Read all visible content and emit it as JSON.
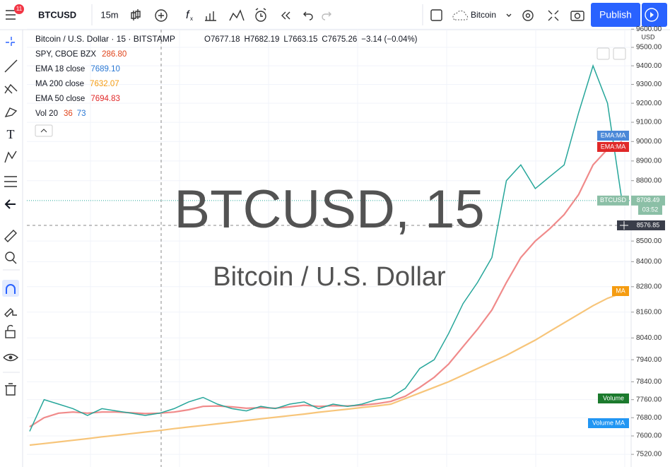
{
  "toolbar": {
    "symbol": "BTCUSD",
    "interval": "15m",
    "badge": "11",
    "layout_name": "Bitcoin",
    "publish": "Publish"
  },
  "legend": {
    "title": "Bitcoin / U.S. Dollar · 15 · BITSTAMP",
    "ohlc": [
      "O7677.18",
      "H7682.19",
      "L7663.15",
      "C7675.26",
      "−3.14 (−0.04%)"
    ],
    "studies": [
      {
        "name": "SPY, CBOE BZX",
        "value": "286.80",
        "color": "#e0441b"
      },
      {
        "name": "EMA 18 close",
        "value": "7689.10",
        "color": "#2a78d4"
      },
      {
        "name": "MA 200 close",
        "value": "7632.07",
        "color": "#f59c11"
      },
      {
        "name": "EMA 50 close",
        "value": "7694.83",
        "color": "#e02828"
      }
    ],
    "volume": {
      "name": "Vol 20",
      "value1": "36",
      "value2": "73"
    }
  },
  "watermark": {
    "title": "BTCUSD, 15",
    "subtitle": "Bitcoin / U.S. Dollar"
  },
  "axis_labels": {
    "unit": "USD",
    "ema_blue": "EMA:MA",
    "ema_red": "EMA:MA",
    "symbol": "BTCUSD",
    "last_price": "8708.49",
    "countdown": "03:52",
    "crosshair": "8576.85",
    "ma": "MA",
    "volume": "Volume",
    "volume_ma": "Volume MA"
  },
  "chart_data": {
    "type": "line",
    "log_scale": true,
    "ylim": [
      7499,
      9597
    ],
    "yticks": [
      {
        "value": 9600,
        "label": "9600.00"
      },
      {
        "value": 9500,
        "label": "9500.00"
      },
      {
        "value": 9400,
        "label": "9400.00"
      },
      {
        "value": 9300,
        "label": "9300.00"
      },
      {
        "value": 9200,
        "label": "9200.00"
      },
      {
        "value": 9100,
        "label": "9100.00"
      },
      {
        "value": 9000,
        "label": "9000.00"
      },
      {
        "value": 8900,
        "label": "8900.00"
      },
      {
        "value": 8800,
        "label": "8800.00"
      },
      {
        "value": 8500,
        "label": "8500.00"
      },
      {
        "value": 8400,
        "label": "8400.00"
      },
      {
        "value": 8280,
        "label": "8280.00"
      },
      {
        "value": 8160,
        "label": "8160.00"
      },
      {
        "value": 8040,
        "label": "8040.00"
      },
      {
        "value": 7940,
        "label": "7940.00"
      },
      {
        "value": 7840,
        "label": "7840.00"
      },
      {
        "value": 7760,
        "label": "7760.00"
      },
      {
        "value": 7680,
        "label": "7680.00"
      },
      {
        "value": 7600,
        "label": "7600.00"
      },
      {
        "value": 7520,
        "label": "7520.00"
      }
    ],
    "grid": true,
    "series": [
      {
        "name": "MA 200 close",
        "color": "#f7c57a",
        "values": [
          7560,
          7567,
          7574,
          7581,
          7588,
          7596,
          7603,
          7610,
          7617,
          7624,
          7632,
          7639,
          7646,
          7653,
          7660,
          7668,
          7675,
          7682,
          7689,
          7696,
          7704,
          7711,
          7718,
          7725,
          7732,
          7740,
          7765,
          7790,
          7815,
          7840,
          7870,
          7900,
          7930,
          7960,
          7995,
          8030,
          8070,
          8110,
          8150,
          8190,
          8225,
          8250
        ]
      },
      {
        "name": "EMA 50 close",
        "color": "#f08a8a",
        "values": [
          7640,
          7680,
          7700,
          7705,
          7700,
          7705,
          7705,
          7702,
          7698,
          7700,
          7705,
          7715,
          7730,
          7732,
          7728,
          7722,
          7724,
          7722,
          7728,
          7735,
          7730,
          7733,
          7732,
          7735,
          7742,
          7752,
          7775,
          7815,
          7860,
          7920,
          8000,
          8080,
          8170,
          8300,
          8420,
          8500,
          8560,
          8630,
          8730,
          8880,
          8960,
          9000
        ]
      },
      {
        "name": "BTCUSD",
        "color": "#26a69a",
        "values": [
          7620,
          7760,
          7740,
          7720,
          7690,
          7720,
          7710,
          7700,
          7690,
          7700,
          7720,
          7750,
          7770,
          7740,
          7720,
          7710,
          7730,
          7720,
          7740,
          7750,
          7720,
          7740,
          7730,
          7740,
          7760,
          7770,
          7810,
          7900,
          7940,
          8060,
          8200,
          8300,
          8420,
          8800,
          8880,
          8760,
          8820,
          8880,
          9150,
          9400,
          9200,
          8700
        ]
      }
    ]
  }
}
